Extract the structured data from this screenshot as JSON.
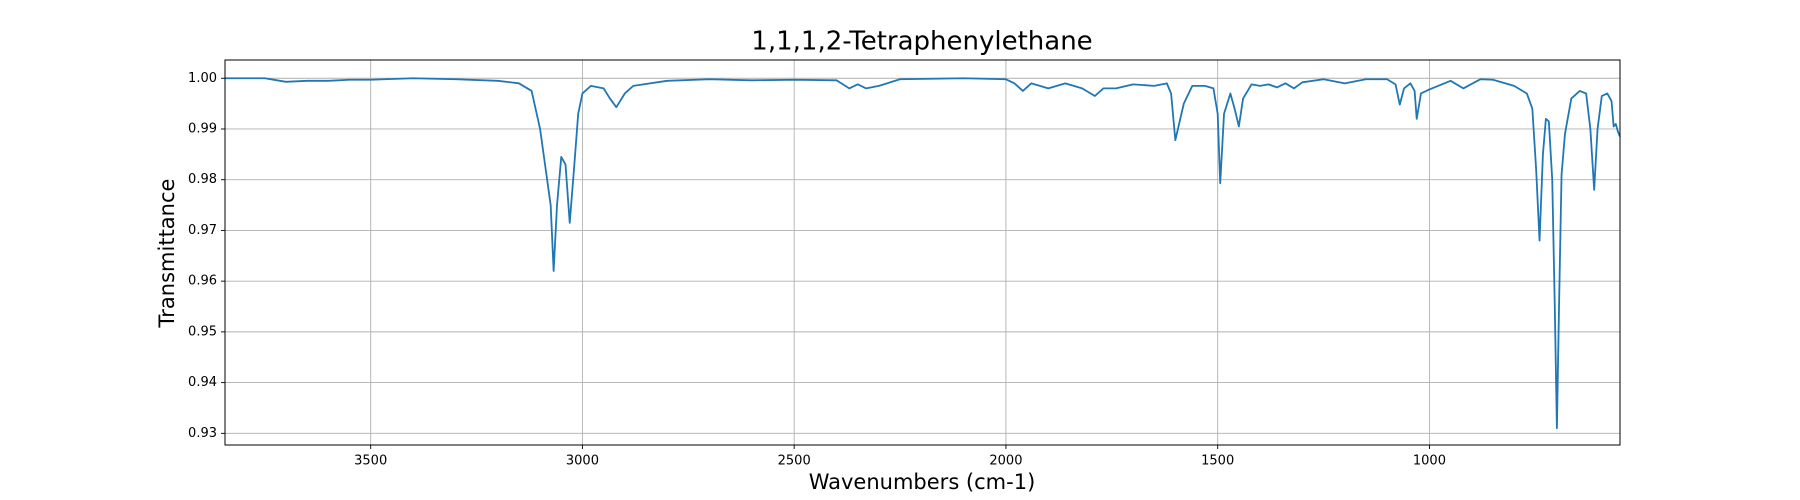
{
  "chart_data": {
    "type": "line",
    "title": "1,1,1,2-Tetraphenylethane",
    "x_label": "Wavenumbers (cm-1)",
    "y_label": "Transmittance",
    "color": "#1f77b4",
    "grid": true,
    "xlim": [
      3844,
      550
    ],
    "ylim": [
      0.9277,
      1.0036
    ],
    "xticks": [
      3500,
      3000,
      2500,
      2000,
      1500,
      1000
    ],
    "yticks": [
      0.93,
      0.94,
      0.95,
      0.96,
      0.97,
      0.98,
      0.99,
      {
        "value": 1,
        "label": "1.00"
      }
    ],
    "x": [
      3844,
      3750,
      3700,
      3650,
      3600,
      3550,
      3500,
      3400,
      3300,
      3200,
      3150,
      3120,
      3100,
      3085,
      3075,
      3068,
      3060,
      3050,
      3040,
      3030,
      3020,
      3010,
      3000,
      2980,
      2950,
      2935,
      2920,
      2900,
      2880,
      2800,
      2700,
      2600,
      2500,
      2400,
      2370,
      2350,
      2330,
      2300,
      2250,
      2100,
      2000,
      1980,
      1960,
      1940,
      1900,
      1860,
      1820,
      1790,
      1770,
      1740,
      1700,
      1650,
      1620,
      1610,
      1600,
      1580,
      1560,
      1530,
      1510,
      1500,
      1494,
      1485,
      1470,
      1460,
      1450,
      1440,
      1420,
      1400,
      1380,
      1360,
      1340,
      1320,
      1300,
      1250,
      1200,
      1150,
      1100,
      1080,
      1070,
      1060,
      1045,
      1035,
      1030,
      1020,
      1000,
      950,
      920,
      880,
      850,
      800,
      770,
      757,
      748,
      740,
      732,
      725,
      718,
      710,
      704,
      699,
      694,
      688,
      680,
      665,
      645,
      630,
      620,
      611,
      603,
      593,
      580,
      570,
      565,
      560,
      555,
      550
    ],
    "values": [
      1.0,
      1.0,
      0.9993,
      0.9995,
      0.9995,
      0.9997,
      0.9997,
      1.0,
      0.9998,
      0.9995,
      0.999,
      0.9975,
      0.99,
      0.981,
      0.975,
      0.962,
      0.975,
      0.9845,
      0.983,
      0.9715,
      0.982,
      0.993,
      0.997,
      0.9985,
      0.998,
      0.996,
      0.9943,
      0.997,
      0.9985,
      0.9995,
      0.9998,
      0.9996,
      0.9997,
      0.9996,
      0.998,
      0.9988,
      0.998,
      0.9985,
      0.9998,
      1.0,
      0.9998,
      0.999,
      0.9975,
      0.999,
      0.998,
      0.999,
      0.998,
      0.9965,
      0.998,
      0.998,
      0.9988,
      0.9985,
      0.999,
      0.997,
      0.9878,
      0.995,
      0.9985,
      0.9985,
      0.998,
      0.993,
      0.9793,
      0.993,
      0.997,
      0.994,
      0.9905,
      0.996,
      0.9988,
      0.9985,
      0.9988,
      0.9982,
      0.999,
      0.998,
      0.9992,
      0.9998,
      0.999,
      0.9998,
      0.9998,
      0.9988,
      0.9948,
      0.998,
      0.999,
      0.9975,
      0.992,
      0.997,
      0.9978,
      0.9995,
      0.998,
      0.9998,
      0.9997,
      0.9985,
      0.997,
      0.994,
      0.982,
      0.968,
      0.985,
      0.992,
      0.9915,
      0.98,
      0.955,
      0.931,
      0.955,
      0.981,
      0.989,
      0.996,
      0.9975,
      0.997,
      0.99,
      0.978,
      0.99,
      0.9965,
      0.997,
      0.9955,
      0.9905,
      0.991,
      0.9895,
      0.9885
    ]
  }
}
